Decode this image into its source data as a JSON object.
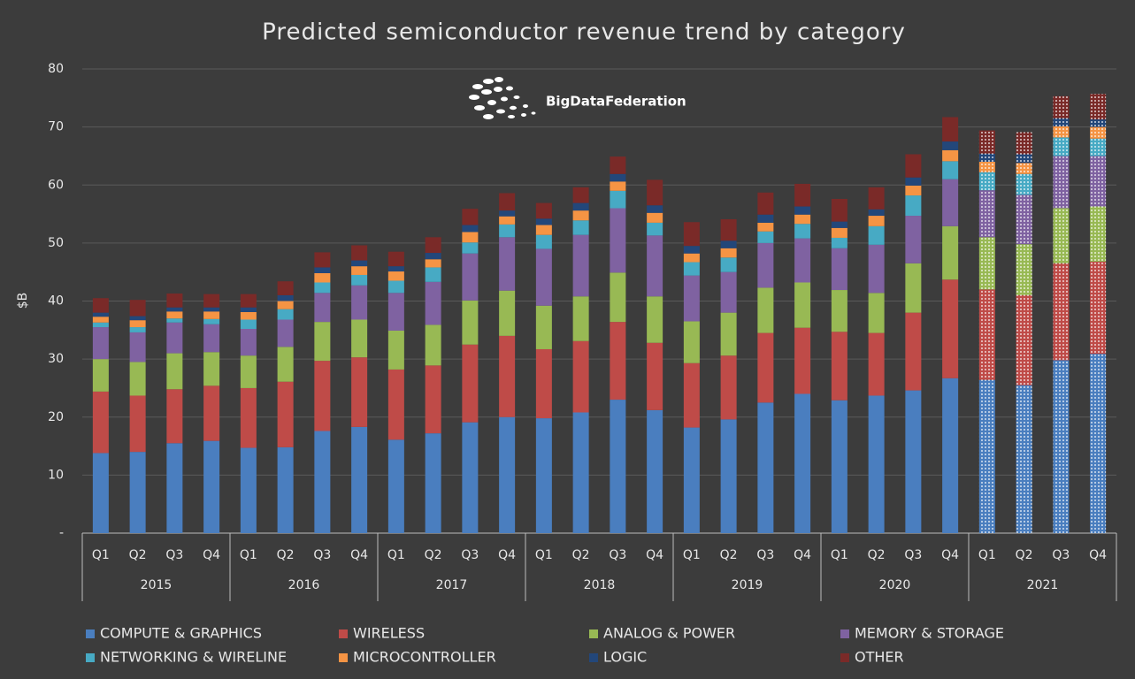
{
  "chart_data": {
    "type": "stacked-bar",
    "title": "Predicted semiconductor revenue trend by category",
    "ylabel": "$B",
    "watermark": "BigDataFederation",
    "categories": [
      "Q1",
      "Q2",
      "Q3",
      "Q4",
      "Q1",
      "Q2",
      "Q3",
      "Q4",
      "Q1",
      "Q2",
      "Q3",
      "Q4",
      "Q1",
      "Q2",
      "Q3",
      "Q4",
      "Q1",
      "Q2",
      "Q3",
      "Q4",
      "Q1",
      "Q2",
      "Q3",
      "Q4",
      "Q1",
      "Q2",
      "Q3",
      "Q4"
    ],
    "groups": [
      "2015",
      "2016",
      "2017",
      "2018",
      "2019",
      "2020",
      "2021"
    ],
    "ylim": [
      0,
      80
    ],
    "yticks": [
      {
        "value": 0,
        "label": "-"
      },
      10,
      20,
      30,
      40,
      50,
      60,
      70,
      80
    ],
    "grid": true,
    "series": [
      {
        "name": "COMPUTE & GRAPHICS",
        "color": "#4a7ebf",
        "values": [
          13.8,
          14.0,
          15.5,
          15.9,
          14.7,
          14.8,
          17.6,
          18.3,
          16.1,
          17.2,
          19.1,
          20.0,
          19.8,
          20.8,
          23.0,
          21.2,
          18.2,
          19.6,
          22.5,
          24.0,
          22.9,
          23.7,
          24.6,
          26.7,
          26.4,
          25.5,
          29.8,
          30.9
        ]
      },
      {
        "name": "WIRELESS",
        "color": "#bf4b48",
        "values": [
          10.6,
          9.7,
          9.3,
          9.5,
          10.3,
          11.3,
          12.1,
          12.0,
          12.1,
          11.7,
          13.4,
          14.0,
          11.9,
          12.3,
          13.4,
          11.6,
          11.1,
          11.0,
          12.0,
          11.4,
          11.8,
          10.8,
          13.4,
          17.0,
          15.6,
          15.5,
          16.7,
          15.9
        ]
      },
      {
        "name": "ANALOG & POWER",
        "color": "#98b954",
        "values": [
          5.6,
          5.8,
          6.2,
          5.8,
          5.6,
          6.0,
          6.7,
          6.5,
          6.7,
          7.0,
          7.6,
          7.8,
          7.5,
          7.7,
          8.5,
          8.0,
          7.2,
          7.4,
          7.8,
          7.8,
          7.2,
          6.9,
          8.5,
          9.2,
          9.0,
          8.8,
          9.5,
          9.5
        ]
      },
      {
        "name": "MEMORY & STORAGE",
        "color": "#7f62a1",
        "values": [
          5.5,
          5.1,
          5.3,
          4.8,
          4.6,
          4.7,
          5.0,
          5.9,
          6.5,
          7.4,
          8.1,
          9.2,
          9.8,
          10.6,
          11.1,
          10.5,
          7.9,
          7.0,
          7.7,
          7.6,
          7.2,
          8.3,
          8.2,
          8.1,
          8.1,
          8.5,
          9.0,
          8.7
        ]
      },
      {
        "name": "NETWORKING & WIRELINE",
        "color": "#47aac4",
        "values": [
          0.8,
          0.9,
          0.7,
          0.9,
          1.6,
          1.8,
          1.8,
          1.8,
          2.1,
          2.5,
          1.9,
          2.2,
          2.4,
          2.5,
          3.0,
          2.2,
          2.3,
          2.5,
          2.0,
          2.5,
          1.8,
          3.2,
          3.5,
          3.1,
          3.1,
          3.6,
          3.2,
          3.0
        ]
      },
      {
        "name": "MICROCONTROLLER",
        "color": "#f59444",
        "values": [
          1.0,
          1.2,
          1.2,
          1.3,
          1.3,
          1.4,
          1.6,
          1.5,
          1.6,
          1.4,
          1.8,
          1.4,
          1.7,
          1.7,
          1.6,
          1.7,
          1.5,
          1.6,
          1.5,
          1.6,
          1.7,
          1.8,
          1.7,
          1.9,
          1.8,
          1.9,
          1.9,
          2.0
        ]
      },
      {
        "name": "LOGIC",
        "color": "#23477a",
        "values": [
          0.7,
          0.7,
          0.7,
          0.7,
          0.8,
          1.0,
          1.0,
          1.0,
          0.9,
          1.1,
          1.2,
          1.0,
          1.1,
          1.3,
          1.3,
          1.3,
          1.3,
          1.3,
          1.4,
          1.4,
          1.1,
          1.1,
          1.4,
          1.5,
          1.4,
          1.5,
          1.4,
          1.3
        ]
      },
      {
        "name": "OTHER",
        "color": "#7a2a28",
        "values": [
          2.5,
          2.8,
          2.4,
          2.3,
          2.3,
          2.4,
          2.6,
          2.6,
          2.5,
          2.7,
          2.8,
          3.0,
          2.7,
          2.7,
          3.0,
          4.4,
          4.1,
          3.7,
          3.8,
          3.9,
          3.9,
          3.8,
          4.0,
          4.2,
          4.0,
          3.8,
          3.8,
          4.4
        ]
      }
    ]
  }
}
